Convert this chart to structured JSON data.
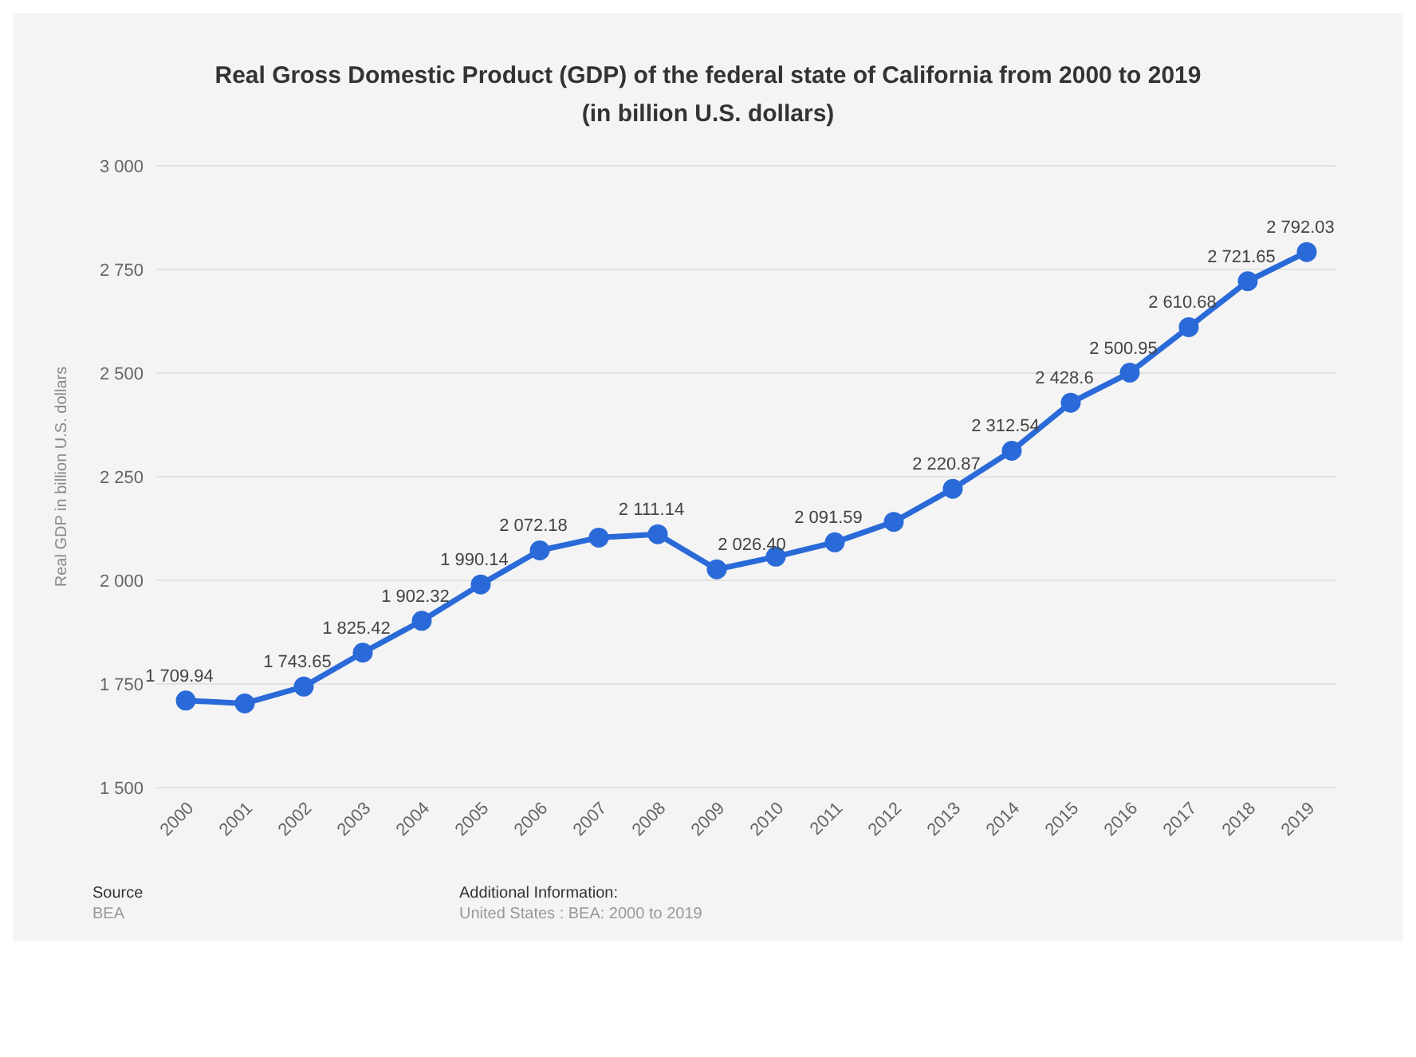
{
  "chart_data": {
    "type": "line",
    "title": "Real Gross Domestic Product (GDP) of the federal state of California from 2000 to 2019 (in billion U.S. dollars)",
    "ylabel": "Real GDP in billion U.S. dollars",
    "categories": [
      "2000",
      "2001",
      "2002",
      "2003",
      "2004",
      "2005",
      "2006",
      "2007",
      "2008",
      "2009",
      "2010",
      "2011",
      "2012",
      "2013",
      "2014",
      "2015",
      "2016",
      "2017",
      "2018",
      "2019"
    ],
    "series": [
      {
        "color": "#2a6ad8",
        "values": [
          1709.94,
          1703,
          1743.65,
          1825.42,
          1902.32,
          1990.14,
          2072.18,
          2103,
          2111.14,
          2026.4,
          2057,
          2091.59,
          2141,
          2220.87,
          2312.54,
          2428.6,
          2500.95,
          2610.68,
          2721.65,
          2792.03
        ],
        "value_labels": [
          "1 709.94",
          null,
          "1 743.65",
          "1 825.42",
          "1 902.32",
          "1 990.14",
          "2 072.18",
          null,
          "2 111.14",
          "2 026.40",
          null,
          "2 091.59",
          null,
          "2 220.87",
          "2 312.54",
          "2 428.6",
          "2 500.95",
          "2 610.68",
          "2 721.65",
          "2 792.03"
        ]
      }
    ],
    "ylim": [
      1500,
      3000
    ],
    "yticks": [
      {
        "value": 1500,
        "label": "1 500"
      },
      {
        "value": 1750,
        "label": "1 750"
      },
      {
        "value": 2000,
        "label": "2 000"
      },
      {
        "value": 2250,
        "label": "2 250"
      },
      {
        "value": 2500,
        "label": "2 500"
      },
      {
        "value": 2750,
        "label": "2 750"
      },
      {
        "value": 3000,
        "label": "3 000"
      }
    ],
    "grid": "y",
    "marker": "circle",
    "line_style": "solid",
    "legend": false,
    "annotations": [
      "Source",
      "BEA",
      "Additional Information:",
      "United States : BEA: 2000 to 2019"
    ]
  }
}
